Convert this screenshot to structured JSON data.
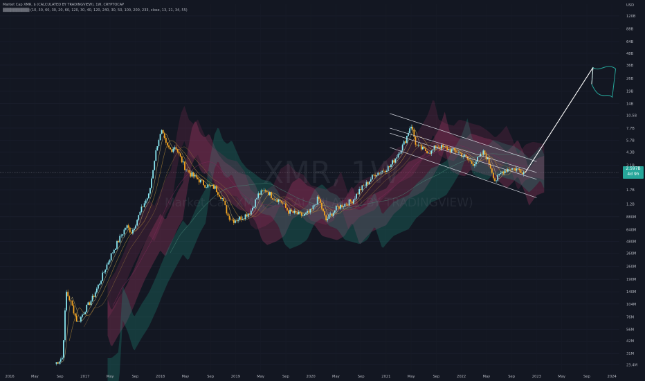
{
  "header": {
    "line1": "Market Cap XMR, $ (CALCULATED BY TRADINGVIEW), 1W, CRYPTOCAP",
    "line2": "▒▒▒▒▒▒▒▒▒▒ (10, 30, 60, 30, 20, 60, 120, 30, 40, 120, 240, 30, 50, 100, 200, 233, close, 13, 21, 34, 55)"
  },
  "watermark": {
    "symbol": "XMR, 1W",
    "description": "Market Cap XMR, $ (CALCULATED BY TRADINGVIEW)"
  },
  "last_price": {
    "value": "2.597B",
    "countdown": "4d 9h"
  },
  "colors": {
    "background": "#131722",
    "candle_up": "#88e5ef",
    "candle_down": "#f5a623",
    "axis_text": "#b2b5be",
    "cloud_red": "#b03a6a",
    "cloud_teal": "#1f8a7a",
    "annotation_line": "#ffffff",
    "flag": "#26a69a"
  },
  "chart_data": {
    "type": "candlestick",
    "y_scale": "log",
    "y_unit": "USD",
    "y_ticks": [
      "120B",
      "88B",
      "64B",
      "48B",
      "36B",
      "26B",
      "19B",
      "14B",
      "10.5B",
      "7.7B",
      "5.7B",
      "4.3B",
      "3.1B",
      "2.3B",
      "1.7B",
      "1.2B",
      "880M",
      "640M",
      "480M",
      "360M",
      "260M",
      "190M",
      "140M",
      "104M",
      "76M",
      "56M",
      "42M",
      "31M",
      "23.4M"
    ],
    "y_tick_values": [
      120000000000,
      88000000000,
      64000000000,
      48000000000,
      36000000000,
      26000000000,
      19000000000,
      14000000000,
      10500000000,
      7700000000,
      5700000000,
      4300000000,
      3100000000,
      2300000000,
      1700000000,
      1200000000,
      880000000,
      640000000,
      480000000,
      360000000,
      260000000,
      190000000,
      140000000,
      104000000,
      76000000,
      56000000,
      42000000,
      31000000,
      23400000
    ],
    "x_ticks": [
      "2016",
      "May",
      "Sep",
      "2017",
      "May",
      "Sep",
      "2018",
      "May",
      "Sep",
      "2019",
      "May",
      "Sep",
      "2020",
      "May",
      "Sep",
      "2021",
      "May",
      "Sep",
      "2022",
      "May",
      "Sep",
      "2023",
      "May",
      "Sep",
      "2024"
    ],
    "x_tick_dates": [
      2016.0,
      2016.333,
      2016.667,
      2017.0,
      2017.333,
      2017.667,
      2018.0,
      2018.333,
      2018.667,
      2019.0,
      2019.333,
      2019.667,
      2020.0,
      2020.333,
      2020.667,
      2021.0,
      2021.333,
      2021.667,
      2022.0,
      2022.333,
      2022.667,
      2023.0,
      2023.333,
      2023.667,
      2024.0
    ],
    "date_range": [
      2015.87,
      2024.1
    ],
    "y_range": [
      20000000,
      160000000000
    ],
    "price_path": [
      [
        2016.6,
        24000000
      ],
      [
        2016.7,
        28000000
      ],
      [
        2016.75,
        140000000
      ],
      [
        2016.82,
        104000000
      ],
      [
        2016.9,
        65000000
      ],
      [
        2017.0,
        90000000
      ],
      [
        2017.1,
        120000000
      ],
      [
        2017.2,
        180000000
      ],
      [
        2017.28,
        260000000
      ],
      [
        2017.35,
        350000000
      ],
      [
        2017.45,
        500000000
      ],
      [
        2017.55,
        700000000
      ],
      [
        2017.62,
        600000000
      ],
      [
        2017.7,
        850000000
      ],
      [
        2017.78,
        1200000000
      ],
      [
        2017.85,
        1500000000
      ],
      [
        2017.92,
        3500000000
      ],
      [
        2017.97,
        5700000000
      ],
      [
        2018.02,
        7000000000
      ],
      [
        2018.08,
        5000000000
      ],
      [
        2018.14,
        4500000000
      ],
      [
        2018.2,
        5000000000
      ],
      [
        2018.25,
        4000000000
      ],
      [
        2018.32,
        3000000000
      ],
      [
        2018.4,
        2500000000
      ],
      [
        2018.5,
        2200000000
      ],
      [
        2018.6,
        1900000000
      ],
      [
        2018.72,
        1800000000
      ],
      [
        2018.82,
        1400000000
      ],
      [
        2018.9,
        900000000
      ],
      [
        2018.97,
        800000000
      ],
      [
        2019.1,
        880000000
      ],
      [
        2019.2,
        1000000000
      ],
      [
        2019.3,
        1500000000
      ],
      [
        2019.4,
        1700000000
      ],
      [
        2019.5,
        1400000000
      ],
      [
        2019.6,
        1300000000
      ],
      [
        2019.7,
        1000000000
      ],
      [
        2019.8,
        950000000
      ],
      [
        2019.9,
        900000000
      ],
      [
        2020.0,
        1000000000
      ],
      [
        2020.1,
        1400000000
      ],
      [
        2020.2,
        800000000
      ],
      [
        2020.25,
        900000000
      ],
      [
        2020.35,
        1100000000
      ],
      [
        2020.45,
        1200000000
      ],
      [
        2020.55,
        1300000000
      ],
      [
        2020.65,
        1700000000
      ],
      [
        2020.75,
        2000000000
      ],
      [
        2020.85,
        2500000000
      ],
      [
        2020.95,
        2700000000
      ],
      [
        2021.05,
        3000000000
      ],
      [
        2021.15,
        4000000000
      ],
      [
        2021.25,
        5500000000
      ],
      [
        2021.33,
        8500000000
      ],
      [
        2021.4,
        5000000000
      ],
      [
        2021.5,
        4500000000
      ],
      [
        2021.6,
        4300000000
      ],
      [
        2021.67,
        5000000000
      ],
      [
        2021.75,
        4800000000
      ],
      [
        2021.85,
        4500000000
      ],
      [
        2021.95,
        4300000000
      ],
      [
        2022.05,
        3800000000
      ],
      [
        2022.15,
        3200000000
      ],
      [
        2022.22,
        3600000000
      ],
      [
        2022.3,
        4300000000
      ],
      [
        2022.38,
        3100000000
      ],
      [
        2022.45,
        2100000000
      ],
      [
        2022.55,
        2700000000
      ],
      [
        2022.65,
        2900000000
      ],
      [
        2022.75,
        2800000000
      ],
      [
        2022.85,
        2597000000
      ]
    ],
    "channel_lines": [
      {
        "from": [
          2021.05,
          11000000000
        ],
        "to": [
          2023.0,
          3400000000
        ]
      },
      {
        "from": [
          2021.05,
          7700000000
        ],
        "to": [
          2023.0,
          2600000000
        ]
      },
      {
        "from": [
          2021.05,
          6800000000
        ],
        "to": [
          2023.0,
          2200000000
        ]
      },
      {
        "from": [
          2021.05,
          4800000000
        ],
        "to": [
          2023.0,
          1400000000
        ]
      }
    ],
    "projection_line": {
      "from": [
        2022.85,
        2600000000
      ],
      "to": [
        2023.75,
        34000000000
      ]
    },
    "flag_region": {
      "x_range": [
        2023.75,
        2024.05
      ],
      "y_range": [
        17000000000,
        34000000000
      ]
    }
  }
}
